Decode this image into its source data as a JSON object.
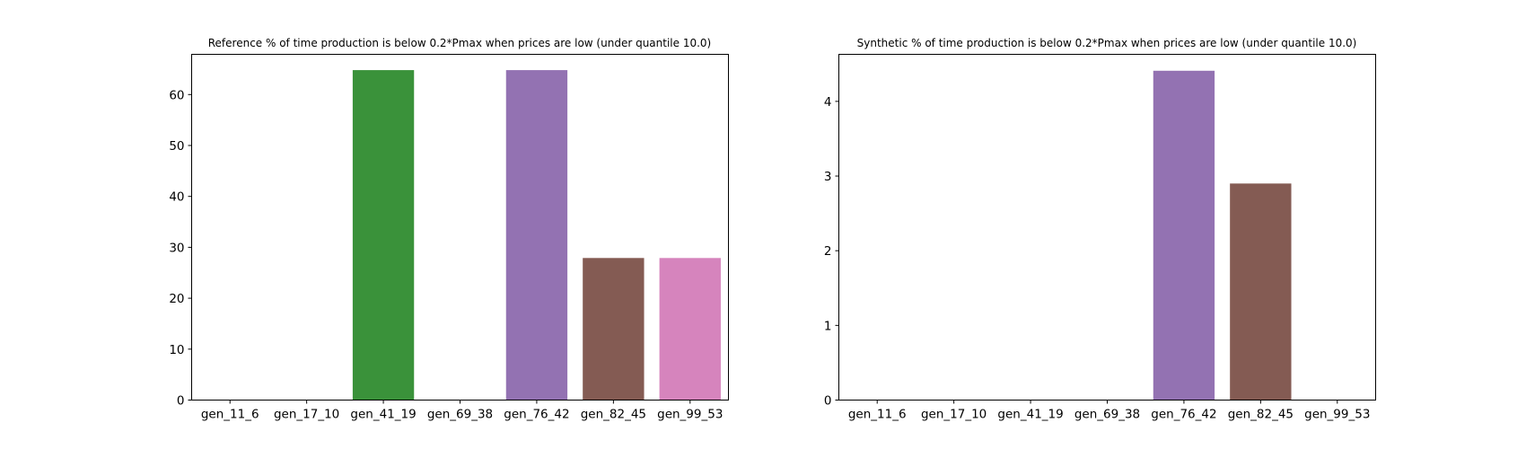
{
  "chart_data": [
    {
      "type": "bar",
      "title": "Reference % of time production is below 0.2*Pmax when prices are low (under quantile 10.0)",
      "xlabel": "",
      "ylabel": "",
      "categories": [
        "gen_11_6",
        "gen_17_10",
        "gen_41_19",
        "gen_69_38",
        "gen_76_42",
        "gen_82_45",
        "gen_99_53"
      ],
      "values": [
        0,
        0,
        64.8,
        0,
        64.8,
        27.9,
        27.9
      ],
      "colors": [
        "#1f77b4",
        "#ff7f0e",
        "#3a923a",
        "#c03d3e",
        "#9372b2",
        "#845b53",
        "#d684bd"
      ],
      "ylim": [
        0,
        67.9
      ],
      "yticks": [
        0,
        10,
        20,
        30,
        40,
        50,
        60
      ],
      "grid": false
    },
    {
      "type": "bar",
      "title": "Synthetic % of time production is below 0.2*Pmax when prices are low (under quantile 10.0)",
      "xlabel": "",
      "ylabel": "",
      "categories": [
        "gen_11_6",
        "gen_17_10",
        "gen_41_19",
        "gen_69_38",
        "gen_76_42",
        "gen_82_45",
        "gen_99_53"
      ],
      "values": [
        0,
        0,
        0,
        0,
        4.41,
        2.9,
        0
      ],
      "colors": [
        "#1f77b4",
        "#ff7f0e",
        "#3a923a",
        "#c03d3e",
        "#9372b2",
        "#845b53",
        "#d684bd"
      ],
      "ylim": [
        0,
        4.63
      ],
      "yticks": [
        0,
        1,
        2,
        3,
        4
      ],
      "grid": false
    }
  ]
}
